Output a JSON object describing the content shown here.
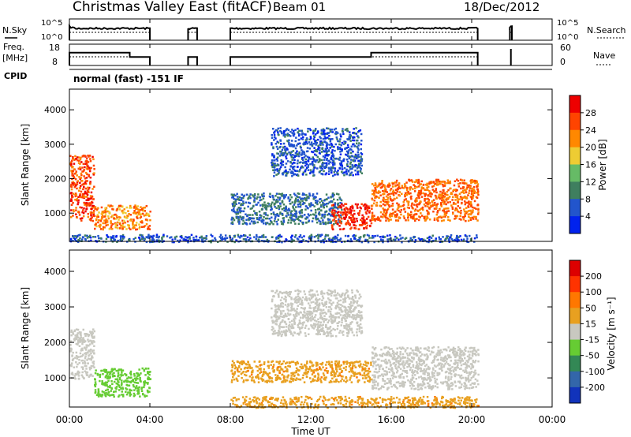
{
  "header": {
    "title": "Christmas Valley East (fitACF)",
    "beam": "Beam 01",
    "date": "18/Dec/2012"
  },
  "nsky_panel": {
    "left_label": "N.Sky",
    "right_label": "N.Search",
    "left_ticks": [
      "10^5",
      "10^0"
    ],
    "right_ticks": [
      "10^5",
      "10^0"
    ]
  },
  "freq_panel": {
    "left_label_line1": "Freq.",
    "left_label_line2": "[MHz]",
    "right_label": "Nave",
    "left_ticks": [
      "18",
      "8"
    ],
    "right_ticks": [
      "60",
      "0"
    ]
  },
  "cpid": {
    "label": "CPID",
    "value": "normal (fast) -151 IF"
  },
  "power_panel": {
    "ylabel": "Slant Range [km]",
    "yticks": [
      "4000",
      "3000",
      "2000",
      "1000"
    ],
    "colorbar_label": "Power [dB]",
    "colorbar_ticks": [
      "28",
      "24",
      "20",
      "16",
      "12",
      "8",
      "4"
    ],
    "colors": [
      "#0022ee",
      "#2255cc",
      "#3f7f5f",
      "#66bb66",
      "#eecc33",
      "#ff8800",
      "#ff4400",
      "#ee0000"
    ]
  },
  "velocity_panel": {
    "ylabel": "Slant Range [km]",
    "yticks": [
      "4000",
      "3000",
      "2000",
      "1000"
    ],
    "colorbar_label": "Velocity [m s⁻¹]",
    "colorbar_ticks": [
      "200",
      "100",
      "50",
      "15",
      "-15",
      "-50",
      "-100",
      "-200"
    ],
    "colors": [
      "#1133bb",
      "#3366aa",
      "#338855",
      "#66cc33",
      "#c8c8c0",
      "#e8a020",
      "#ff7700",
      "#ff3300",
      "#dd0000"
    ]
  },
  "x_axis": {
    "label": "Time UT",
    "ticks": [
      "00:00",
      "04:00",
      "08:00",
      "12:00",
      "16:00",
      "20:00",
      "00:00"
    ]
  },
  "chart_data": {
    "type": "heatmap",
    "title": "Christmas Valley East (fitACF)",
    "xlabel": "Time UT",
    "ylabel": "Slant Range [km]",
    "xlim_hours": [
      0,
      24
    ],
    "ylim_km": [
      180,
      4600
    ],
    "operating_intervals_hours": [
      [
        0,
        4.0
      ],
      [
        5.9,
        6.35
      ],
      [
        8.0,
        20.3
      ],
      [
        21.9,
        22.0
      ]
    ],
    "frequency_mhz": [
      {
        "start": 0,
        "end": 3.0,
        "value": 14
      },
      {
        "start": 3.0,
        "end": 4.0,
        "value": 12
      },
      {
        "start": 5.9,
        "end": 6.35,
        "value": 12
      },
      {
        "start": 8.0,
        "end": 15.0,
        "value": 12
      },
      {
        "start": 15.0,
        "end": 20.3,
        "value": 14
      }
    ],
    "power_regions": [
      {
        "t0": 0.0,
        "t1": 1.2,
        "r0": 800,
        "r1": 2700,
        "power_db": 26
      },
      {
        "t0": 1.2,
        "t1": 4.0,
        "r0": 550,
        "r1": 1250,
        "power_db": 22
      },
      {
        "t0": 8.0,
        "t1": 13.5,
        "r0": 700,
        "r1": 1600,
        "power_db": 8
      },
      {
        "t0": 10.0,
        "t1": 14.5,
        "r0": 2100,
        "r1": 3500,
        "power_db": 6
      },
      {
        "t0": 13.0,
        "t1": 15.0,
        "r0": 550,
        "r1": 1300,
        "power_db": 28
      },
      {
        "t0": 15.0,
        "t1": 20.3,
        "r0": 800,
        "r1": 2000,
        "power_db": 24
      },
      {
        "t0": 0.0,
        "t1": 20.3,
        "r0": 180,
        "r1": 400,
        "power_db": 6
      }
    ],
    "velocity_regions": [
      {
        "t0": 0.0,
        "t1": 1.2,
        "r0": 1000,
        "r1": 2400,
        "velocity": 0
      },
      {
        "t0": 1.2,
        "t1": 4.0,
        "r0": 500,
        "r1": 1300,
        "velocity": 30
      },
      {
        "t0": 8.0,
        "t1": 15.0,
        "r0": 900,
        "r1": 1500,
        "velocity": -40
      },
      {
        "t0": 10.0,
        "t1": 14.5,
        "r0": 2200,
        "r1": 3500,
        "velocity": 0
      },
      {
        "t0": 15.0,
        "t1": 20.3,
        "r0": 700,
        "r1": 1900,
        "velocity": 0
      },
      {
        "t0": 8.0,
        "t1": 20.3,
        "r0": 180,
        "r1": 500,
        "velocity": -40
      }
    ]
  }
}
